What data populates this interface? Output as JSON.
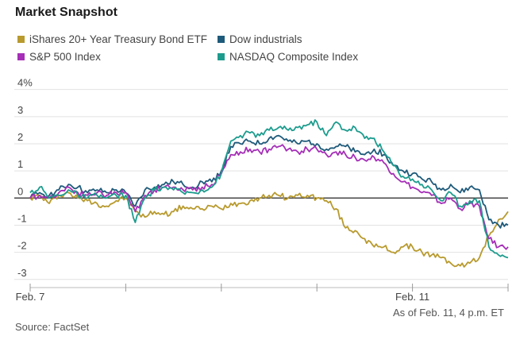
{
  "title": "Market Snapshot",
  "source": "Source: FactSet",
  "note": "As of Feb. 11, 4 p.m. ET",
  "chart_data": {
    "type": "line",
    "title": "Market Snapshot",
    "xlabel": "",
    "ylabel": "",
    "x_tick_labels": [
      "Feb. 7",
      "",
      "",
      "",
      "Feb. 11",
      ""
    ],
    "y_ticks": [
      {
        "value": 4,
        "label": "4%"
      },
      {
        "value": 3,
        "label": "3"
      },
      {
        "value": 2,
        "label": "2"
      },
      {
        "value": 1,
        "label": "1"
      },
      {
        "value": 0,
        "label": "0"
      },
      {
        "value": -1,
        "label": "-1"
      },
      {
        "value": -2,
        "label": "-2"
      },
      {
        "value": -3,
        "label": "-3"
      }
    ],
    "ylim": [
      -3.3,
      4.4
    ],
    "xlim": [
      0,
      5
    ],
    "grid": true,
    "legend_position": "top",
    "x": [
      0,
      0.1,
      0.2,
      0.3,
      0.4,
      0.5,
      0.6,
      0.7,
      0.8,
      0.9,
      1.0,
      1.1,
      1.2,
      1.3,
      1.4,
      1.5,
      1.6,
      1.7,
      1.8,
      1.9,
      2.0,
      2.1,
      2.2,
      2.3,
      2.4,
      2.5,
      2.6,
      2.7,
      2.8,
      2.9,
      3.0,
      3.1,
      3.2,
      3.3,
      3.4,
      3.5,
      3.6,
      3.7,
      3.8,
      3.9,
      4.0,
      4.1,
      4.2,
      4.3,
      4.4,
      4.5,
      4.6,
      4.7,
      4.8,
      4.9,
      5.0
    ],
    "series": [
      {
        "name": "iShares 20+ Year Treasury Bond ETF",
        "color": "#b89a2e",
        "values": [
          0.0,
          0.1,
          -0.2,
          0.1,
          0.2,
          0.0,
          -0.1,
          -0.2,
          -0.3,
          -0.1,
          0.0,
          -0.5,
          -0.7,
          -0.5,
          -0.6,
          -0.5,
          -0.3,
          -0.4,
          -0.4,
          -0.3,
          -0.4,
          -0.2,
          -0.2,
          -0.1,
          0.0,
          0.1,
          0.1,
          0.0,
          0.1,
          0.1,
          0.0,
          -0.1,
          -0.4,
          -1.1,
          -1.2,
          -1.5,
          -1.8,
          -1.8,
          -2.0,
          -1.8,
          -1.8,
          -2.0,
          -2.1,
          -2.2,
          -2.4,
          -2.5,
          -2.4,
          -2.2,
          -1.4,
          -0.8,
          -0.5
        ]
      },
      {
        "name": "Dow industrials",
        "color": "#1e5a7a",
        "values": [
          0.0,
          0.2,
          0.1,
          0.3,
          0.5,
          0.4,
          0.2,
          0.3,
          0.2,
          0.3,
          0.2,
          -0.3,
          0.3,
          0.4,
          0.5,
          0.6,
          0.5,
          0.4,
          0.6,
          0.6,
          1.0,
          1.9,
          2.0,
          2.1,
          2.0,
          2.2,
          2.3,
          2.1,
          2.0,
          2.1,
          2.0,
          1.8,
          1.9,
          1.9,
          1.7,
          1.6,
          1.8,
          1.6,
          1.2,
          1.0,
          0.9,
          0.7,
          0.6,
          0.3,
          0.5,
          0.2,
          0.4,
          0.3,
          -0.8,
          -1.0,
          -1.0
        ]
      },
      {
        "name": "S&P 500 Index",
        "color": "#a52fb7",
        "values": [
          0.0,
          0.1,
          0.0,
          0.2,
          0.4,
          0.2,
          0.1,
          0.2,
          0.1,
          0.2,
          0.2,
          -0.5,
          0.1,
          0.3,
          0.4,
          0.4,
          0.3,
          0.3,
          0.4,
          0.5,
          0.9,
          1.6,
          1.7,
          1.8,
          1.7,
          1.8,
          1.9,
          1.8,
          1.7,
          1.8,
          1.8,
          1.6,
          1.7,
          1.6,
          1.5,
          1.4,
          1.5,
          1.3,
          0.9,
          0.6,
          0.4,
          0.2,
          0.1,
          -0.2,
          0.0,
          -0.4,
          -0.2,
          -0.3,
          -1.5,
          -1.8,
          -1.8
        ]
      },
      {
        "name": "NASDAQ Composite Index",
        "color": "#1d9c8e",
        "values": [
          0.2,
          0.4,
          0.0,
          0.1,
          0.3,
          0.1,
          0.0,
          0.1,
          0.0,
          0.1,
          0.1,
          -0.9,
          0.0,
          0.3,
          0.4,
          0.3,
          0.2,
          0.2,
          0.3,
          0.4,
          0.9,
          2.1,
          2.3,
          2.4,
          2.3,
          2.5,
          2.6,
          2.5,
          2.6,
          2.7,
          2.8,
          2.3,
          2.8,
          2.5,
          2.6,
          2.2,
          2.2,
          1.7,
          1.2,
          0.8,
          0.7,
          0.5,
          0.3,
          -0.1,
          0.2,
          -0.3,
          -0.1,
          -0.1,
          -1.8,
          -2.1,
          -2.2
        ]
      }
    ]
  }
}
